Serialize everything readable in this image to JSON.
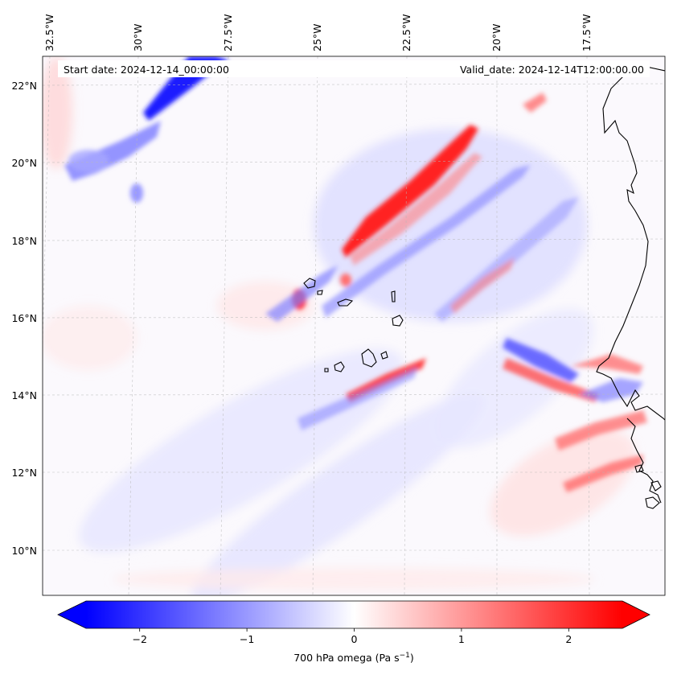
{
  "map": {
    "start_label": "Start date: 2024-12-14_00:00:00",
    "valid_label": "Valid_date: 2024-12-14T12:00:00.00",
    "lon_labels": [
      "32.5°W",
      "30°W",
      "27.5°W",
      "25°W",
      "22.5°W",
      "20°W",
      "17.5°W"
    ],
    "lat_labels": [
      "22°N",
      "20°N",
      "18°N",
      "16°N",
      "14°N",
      "12°N",
      "10°N"
    ],
    "gridlines": true,
    "coastlines": true,
    "colormap": "bwr",
    "colors": {
      "negative": "#0000ff",
      "zero": "#ffffff",
      "positive": "#ff0000",
      "coast": "#000000"
    }
  },
  "colorbar": {
    "label": "700 hPa omega (Pa s",
    "label_sup": "−1",
    "label_close": ")",
    "ticks": [
      {
        "value": -2,
        "label": "−2"
      },
      {
        "value": -1,
        "label": "−1"
      },
      {
        "value": 0,
        "label": "0"
      },
      {
        "value": 1,
        "label": "1"
      },
      {
        "value": 2,
        "label": "2"
      }
    ],
    "range": [
      -2.5,
      2.5
    ],
    "extend": "both"
  }
}
